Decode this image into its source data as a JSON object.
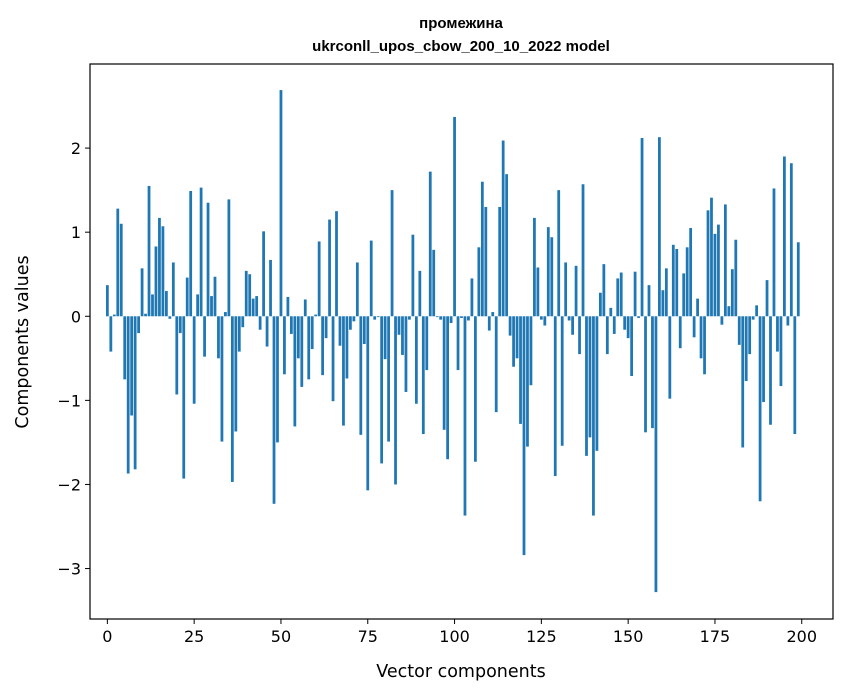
{
  "chart_data": {
    "type": "bar",
    "title": "промежина",
    "subtitle": "ukrconll_upos_cbow_200_10_2022 model",
    "xlabel": "Vector components",
    "ylabel": "Components values",
    "xlim": [
      -5,
      209
    ],
    "ylim": [
      -3.6,
      3.0
    ],
    "xticks": [
      0,
      25,
      50,
      75,
      100,
      125,
      150,
      175,
      200
    ],
    "xtick_labels": [
      "0",
      "25",
      "50",
      "75",
      "100",
      "125",
      "150",
      "175",
      "200"
    ],
    "yticks": [
      -3,
      -2,
      -1,
      0,
      1,
      2
    ],
    "ytick_labels": [
      "−3",
      "−2",
      "−1",
      "0",
      "1",
      "2"
    ],
    "bar_color": "#1f77b4",
    "grid": false,
    "x": [
      0,
      1,
      2,
      3,
      4,
      5,
      6,
      7,
      8,
      9,
      10,
      11,
      12,
      13,
      14,
      15,
      16,
      17,
      18,
      19,
      20,
      21,
      22,
      23,
      24,
      25,
      26,
      27,
      28,
      29,
      30,
      31,
      32,
      33,
      34,
      35,
      36,
      37,
      38,
      39,
      40,
      41,
      42,
      43,
      44,
      45,
      46,
      47,
      48,
      49,
      50,
      51,
      52,
      53,
      54,
      55,
      56,
      57,
      58,
      59,
      60,
      61,
      62,
      63,
      64,
      65,
      66,
      67,
      68,
      69,
      70,
      71,
      72,
      73,
      74,
      75,
      76,
      77,
      78,
      79,
      80,
      81,
      82,
      83,
      84,
      85,
      86,
      87,
      88,
      89,
      90,
      91,
      92,
      93,
      94,
      95,
      96,
      97,
      98,
      99,
      100,
      101,
      102,
      103,
      104,
      105,
      106,
      107,
      108,
      109,
      110,
      111,
      112,
      113,
      114,
      115,
      116,
      117,
      118,
      119,
      120,
      121,
      122,
      123,
      124,
      125,
      126,
      127,
      128,
      129,
      130,
      131,
      132,
      133,
      134,
      135,
      136,
      137,
      138,
      139,
      140,
      141,
      142,
      143,
      144,
      145,
      146,
      147,
      148,
      149,
      150,
      151,
      152,
      153,
      154,
      155,
      156,
      157,
      158,
      159,
      160,
      161,
      162,
      163,
      164,
      165,
      166,
      167,
      168,
      169,
      170,
      171,
      172,
      173,
      174,
      175,
      176,
      177,
      178,
      179,
      180,
      181,
      182,
      183,
      184,
      185,
      186,
      187,
      188,
      189,
      190,
      191,
      192,
      193,
      194,
      195,
      196,
      197,
      198,
      199
    ],
    "values": [
      0.37,
      -0.42,
      0.02,
      1.28,
      1.1,
      -0.75,
      -1.87,
      -1.18,
      -1.82,
      -0.2,
      0.57,
      0.03,
      1.55,
      0.26,
      0.83,
      1.17,
      1.07,
      0.3,
      -0.03,
      0.64,
      -0.93,
      -0.2,
      -1.93,
      0.46,
      1.49,
      -1.04,
      0.26,
      1.53,
      -0.48,
      1.35,
      0.24,
      0.47,
      -0.5,
      -1.49,
      0.05,
      1.39,
      -1.97,
      -1.37,
      -0.42,
      -0.13,
      0.54,
      0.5,
      0.21,
      0.24,
      -0.16,
      1.01,
      -0.36,
      0.67,
      -2.23,
      -1.5,
      2.69,
      -0.69,
      0.23,
      -0.21,
      -1.31,
      -0.5,
      -0.84,
      0.2,
      -0.75,
      -0.39,
      0.02,
      0.89,
      -0.7,
      -0.26,
      1.15,
      -1.01,
      1.25,
      -0.35,
      -1.3,
      -0.74,
      -0.16,
      -0.06,
      0.64,
      -1.41,
      -0.33,
      -2.07,
      0.9,
      -0.04,
      -0.01,
      -1.75,
      -0.51,
      -1.49,
      1.5,
      -2.0,
      -0.22,
      -0.46,
      -0.9,
      -0.04,
      0.97,
      -1.04,
      0.54,
      -1.4,
      -0.64,
      1.72,
      0.79,
      -0.01,
      -0.04,
      -1.35,
      -1.7,
      -0.08,
      2.37,
      -0.64,
      -0.02,
      -2.37,
      -0.05,
      0.45,
      -1.73,
      0.82,
      1.6,
      1.3,
      -0.17,
      0.05,
      -1.14,
      1.3,
      2.09,
      1.69,
      -0.23,
      -0.6,
      -0.5,
      -1.28,
      -2.84,
      -1.55,
      -0.82,
      1.17,
      0.58,
      -0.04,
      -0.11,
      1.06,
      0.94,
      -1.9,
      1.5,
      -1.54,
      0.64,
      -0.05,
      -0.22,
      0.6,
      -0.45,
      1.57,
      -1.66,
      -1.44,
      -2.37,
      -1.6,
      0.28,
      0.62,
      -0.45,
      0.1,
      -0.21,
      0.45,
      0.52,
      -0.16,
      -0.26,
      -0.71,
      0.53,
      -0.02,
      2.12,
      -1.38,
      0.37,
      -1.33,
      -3.28,
      2.13,
      0.31,
      0.57,
      -0.98,
      0.85,
      0.8,
      -0.38,
      0.51,
      0.82,
      1.05,
      -0.25,
      0.21,
      -0.5,
      -0.69,
      1.26,
      1.41,
      0.98,
      1.09,
      -0.1,
      1.33,
      0.12,
      0.56,
      0.91,
      -0.34,
      -1.56,
      -0.77,
      -0.45,
      -0.04,
      0.13,
      -2.2,
      -1.02,
      0.43,
      -1.29,
      1.52,
      -0.42,
      -0.83,
      1.9,
      -0.11,
      1.82,
      -1.4,
      0.88
    ]
  }
}
